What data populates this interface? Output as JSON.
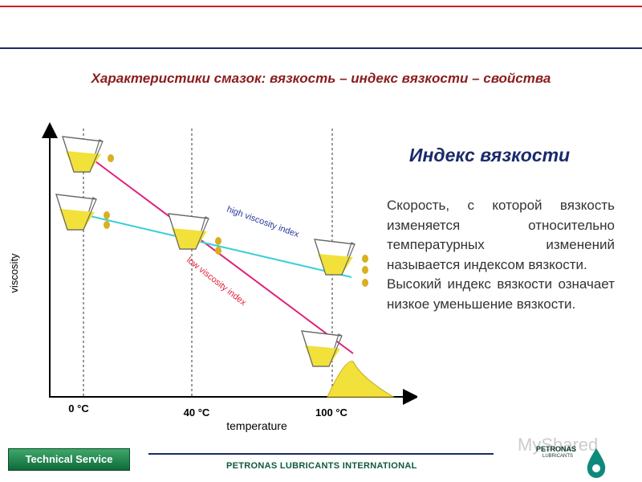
{
  "header": {
    "title": "Характеристики смазок: вязкость – индекс вязкости – свойства"
  },
  "diagram": {
    "y_axis_label": "viscosity",
    "x_axis_label": "temperature",
    "temperatures": [
      "0 °C",
      "40 °C",
      "100 °C"
    ],
    "lines": [
      {
        "label": "high viscosity index"
      },
      {
        "label": "low viscosity index"
      }
    ]
  },
  "text_panel": {
    "heading": "Индекс вязкости",
    "paragraphs": [
      "Скорость, с которой вязкость изменяется относительно температурных изменений называется индексом вязкости.",
      "Высокий индекс вязкости означает низкое уменьшение вязкости."
    ]
  },
  "footer": {
    "badge": "Technical Service",
    "company": "PETRONAS LUBRICANTS INTERNATIONAL",
    "logo_name": "PETRONAS",
    "logo_sub": "LUBRICANTS",
    "watermark": "MyShared"
  }
}
